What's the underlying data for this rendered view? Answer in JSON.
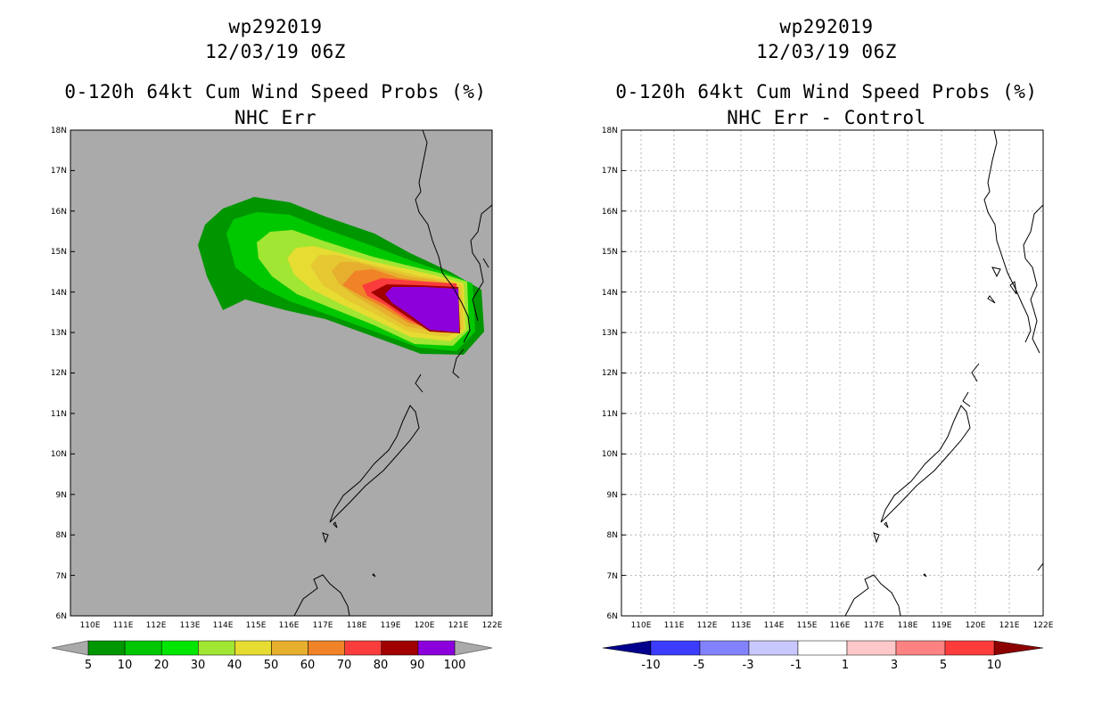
{
  "left": {
    "title_storm": "wp292019",
    "title_time": "12/03/19 06Z",
    "title_product": "0-120h 64kt Cum Wind Speed Probs (%)",
    "title_variant": "NHC Err",
    "colorbar": {
      "labels": [
        "5",
        "10",
        "20",
        "30",
        "40",
        "50",
        "60",
        "70",
        "80",
        "90",
        "100"
      ],
      "colors": [
        "#009600",
        "#00c800",
        "#00e600",
        "#a0e632",
        "#e6dc32",
        "#e6af2d",
        "#f08228",
        "#fa3c3c",
        "#a00000",
        "#8c00dc"
      ]
    }
  },
  "right": {
    "title_storm": "wp292019",
    "title_time": "12/03/19 06Z",
    "title_product": "0-120h 64kt Cum Wind Speed Probs (%)",
    "title_variant": "NHC Err - Control",
    "colorbar": {
      "labels": [
        "-10",
        "-5",
        "-3",
        "-1",
        "1",
        "3",
        "5",
        "10"
      ],
      "colors": [
        "#0000c8",
        "#3c3cff",
        "#8282ff",
        "#c8c8ff",
        "#ffffff",
        "#ffc8c8",
        "#ff8282",
        "#ff3c3c",
        "#ff0000"
      ],
      "under_color": "#00008c",
      "over_color": "#8c0000"
    }
  },
  "map": {
    "lat_labels": [
      "18N",
      "17N",
      "16N",
      "15N",
      "14N",
      "13N",
      "12N",
      "11N",
      "10N",
      "9N",
      "8N",
      "7N",
      "6N"
    ],
    "lon_labels": [
      "110E",
      "111E",
      "112E",
      "113E",
      "114E",
      "115E",
      "116E",
      "117E",
      "118E",
      "119E",
      "120E",
      "121E",
      "122E"
    ],
    "land_coastline": "Philippines"
  }
}
